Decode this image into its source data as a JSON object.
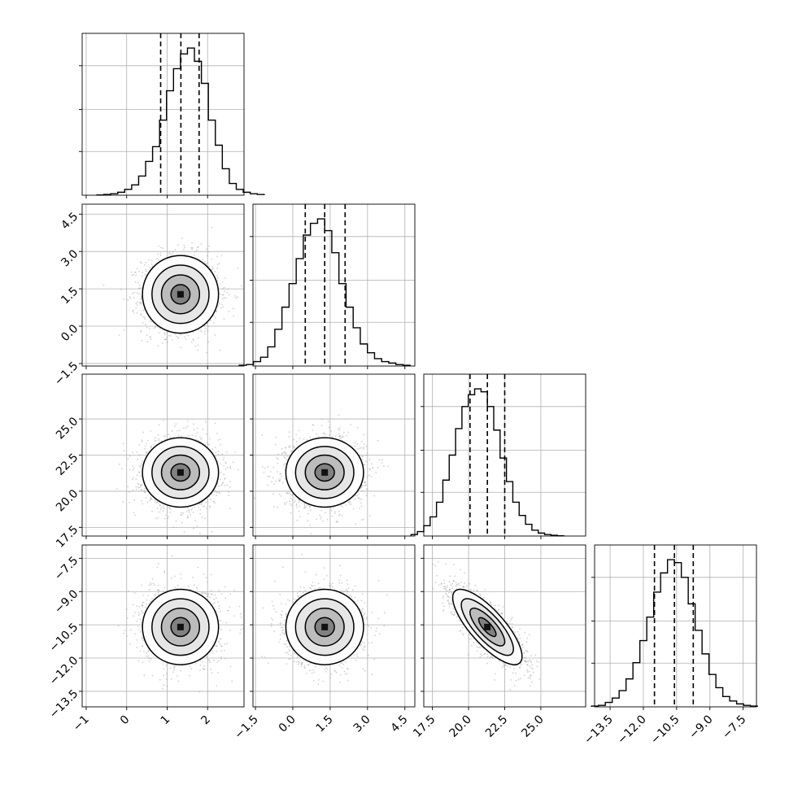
{
  "chart_data": {
    "type": "corner",
    "title": "",
    "grid": true,
    "parameters": [
      {
        "index": 0,
        "range": [
          -1.1,
          2.9
        ],
        "ticks": [
          {
            "v": -1,
            "label": "−1"
          },
          {
            "v": 0,
            "label": "0"
          },
          {
            "v": 1,
            "label": "1"
          },
          {
            "v": 2,
            "label": "2"
          }
        ],
        "quantiles": [
          0.84,
          1.34,
          1.79
        ],
        "mean": 1.33,
        "sd": 0.47,
        "hist_counts": [
          0.2,
          0.5,
          1,
          2,
          4,
          7,
          13,
          23,
          33,
          51,
          71,
          86,
          96,
          100,
          91,
          76,
          51,
          34,
          18,
          8,
          4,
          2,
          1,
          0.5
        ]
      },
      {
        "index": 1,
        "range": [
          -1.6,
          4.9
        ],
        "ticks": [
          {
            "v": -1.5,
            "label": "−1.5"
          },
          {
            "v": 0,
            "label": "0.0"
          },
          {
            "v": 1.5,
            "label": "1.5"
          },
          {
            "v": 3,
            "label": "3.0"
          },
          {
            "v": 4.5,
            "label": "4.5"
          }
        ],
        "quantiles": [
          0.5,
          1.28,
          2.1
        ],
        "mean": 1.28,
        "sd": 0.78,
        "hist_counts": [
          0.5,
          1,
          3,
          6,
          13,
          25,
          40,
          56,
          73,
          89,
          97,
          100,
          92,
          77,
          56,
          40,
          26,
          15,
          9,
          5,
          3,
          2,
          1,
          0.5
        ]
      },
      {
        "index": 2,
        "range": [
          16.9,
          28.1
        ],
        "ticks": [
          {
            "v": 17.5,
            "label": "17.5"
          },
          {
            "v": 20,
            "label": "20.0"
          },
          {
            "v": 22.5,
            "label": "22.5"
          },
          {
            "v": 25,
            "label": "25.0"
          }
        ],
        "quantiles": [
          20.1,
          21.3,
          22.5
        ],
        "mean": 21.3,
        "sd": 1.2,
        "hist_counts": [
          1,
          3,
          7,
          13,
          23,
          38,
          55,
          73,
          88,
          96,
          100,
          98,
          88,
          72,
          53,
          37,
          23,
          14,
          8,
          4,
          2,
          1,
          0.5,
          0.2
        ]
      },
      {
        "index": 3,
        "range": [
          -14.2,
          -6.9
        ],
        "ticks": [
          {
            "v": -13.5,
            "label": "−13.5"
          },
          {
            "v": -12,
            "label": "−12.0"
          },
          {
            "v": -10.5,
            "label": "−10.5"
          },
          {
            "v": -9,
            "label": "−9.0"
          },
          {
            "v": -7.5,
            "label": "−7.5"
          }
        ],
        "quantiles": [
          -11.5,
          -10.6,
          -9.75
        ],
        "mean": -10.6,
        "sd": 0.85,
        "hist_counts": [
          0.5,
          1,
          3,
          6,
          11,
          19,
          30,
          45,
          61,
          78,
          91,
          100,
          98,
          88,
          70,
          52,
          36,
          22,
          13,
          7,
          4,
          2,
          1,
          0.5
        ]
      }
    ],
    "pairs": [
      {
        "row": 1,
        "col": 0,
        "corr": 0.0
      },
      {
        "row": 2,
        "col": 0,
        "corr": 0.0
      },
      {
        "row": 2,
        "col": 1,
        "corr": 0.0
      },
      {
        "row": 3,
        "col": 0,
        "corr": 0.0
      },
      {
        "row": 3,
        "col": 1,
        "corr": 0.0
      },
      {
        "row": 3,
        "col": 2,
        "corr": -0.78
      }
    ],
    "contour_levels_sigma": [
      0.5,
      1.0,
      1.5,
      2.0
    ],
    "colors": {
      "line": "#000000",
      "grid": "#b0b0b0",
      "point": "#9a9a9a"
    }
  }
}
